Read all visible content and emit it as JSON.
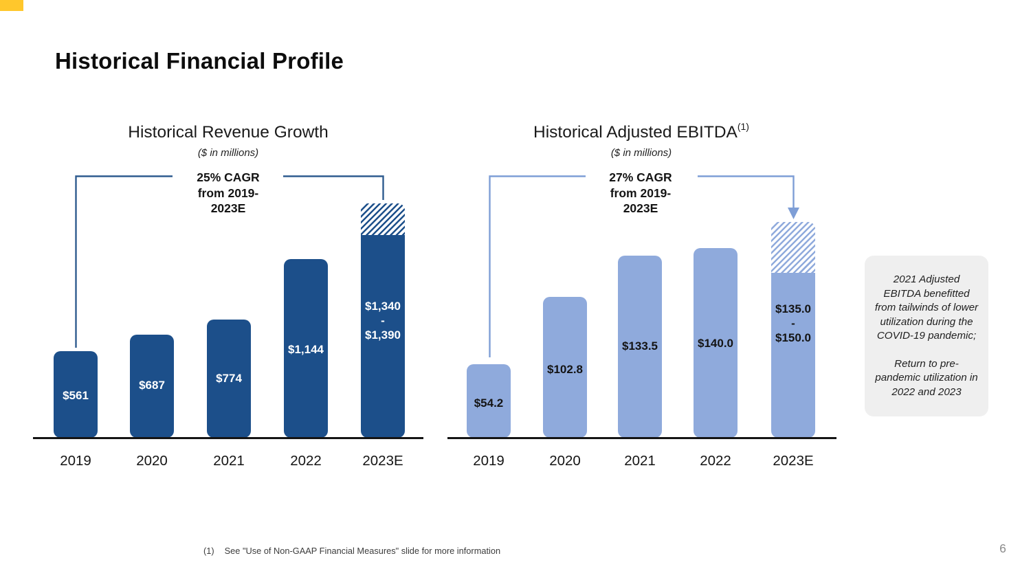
{
  "slide": {
    "title": "Historical Financial Profile",
    "page_number": "6",
    "corner_accent_color": "#FFC72C",
    "background_color": "#FFFFFF"
  },
  "footnote": {
    "marker": "(1)",
    "text": "See \"Use of Non-GAAP Financial Measures\" slide for more information"
  },
  "callout": {
    "background": "#EFEFEF",
    "paragraph_1": "2021 Adjusted EBITDA benefitted from tailwinds of lower utilization during the COVID-19 pandemic;",
    "paragraph_2": "Return to pre-pandemic utilization in 2022 and 2023"
  },
  "chart_data": [
    {
      "type": "bar",
      "title": "Historical Revenue Growth",
      "title_superscript": "",
      "subtitle": "($ in millions)",
      "annotation": "25% CAGR\nfrom 2019-\n2023E",
      "categories": [
        "2019",
        "2020",
        "2021",
        "2022",
        "2023E"
      ],
      "values": [
        561,
        687,
        774,
        1144,
        {
          "low": 1340,
          "high": 1390
        }
      ],
      "value_labels": [
        "$561",
        "$687",
        "$774",
        "$1,144",
        [
          "$1,340",
          "-",
          "$1,390"
        ]
      ],
      "estimate_category": "2023E",
      "estimate_style": "hatched-top",
      "bar_color": "#1C4F8A",
      "value_label_color": "#FFFFFF",
      "bracket_color": "#2F5C8F",
      "xlabel": "",
      "ylabel": "",
      "grid": false,
      "legend_position": "none"
    },
    {
      "type": "bar",
      "title": "Historical Adjusted EBITDA",
      "title_superscript": "(1)",
      "subtitle": "($ in millions)",
      "annotation": "27% CAGR\nfrom 2019-\n2023E",
      "categories": [
        "2019",
        "2020",
        "2021",
        "2022",
        "2023E"
      ],
      "values": [
        54.2,
        102.8,
        133.5,
        140.0,
        {
          "low": 135.0,
          "high": 150.0
        }
      ],
      "value_labels": [
        "$54.2",
        "$102.8",
        "$133.5",
        "$140.0",
        [
          "$135.0",
          "-",
          "$150.0"
        ]
      ],
      "estimate_category": "2023E",
      "estimate_style": "hatched-top",
      "bar_color": "#8FAADC",
      "value_label_color": "#141414",
      "bracket_color": "#7E9ED6",
      "xlabel": "",
      "ylabel": "",
      "grid": false,
      "legend_position": "none"
    }
  ]
}
